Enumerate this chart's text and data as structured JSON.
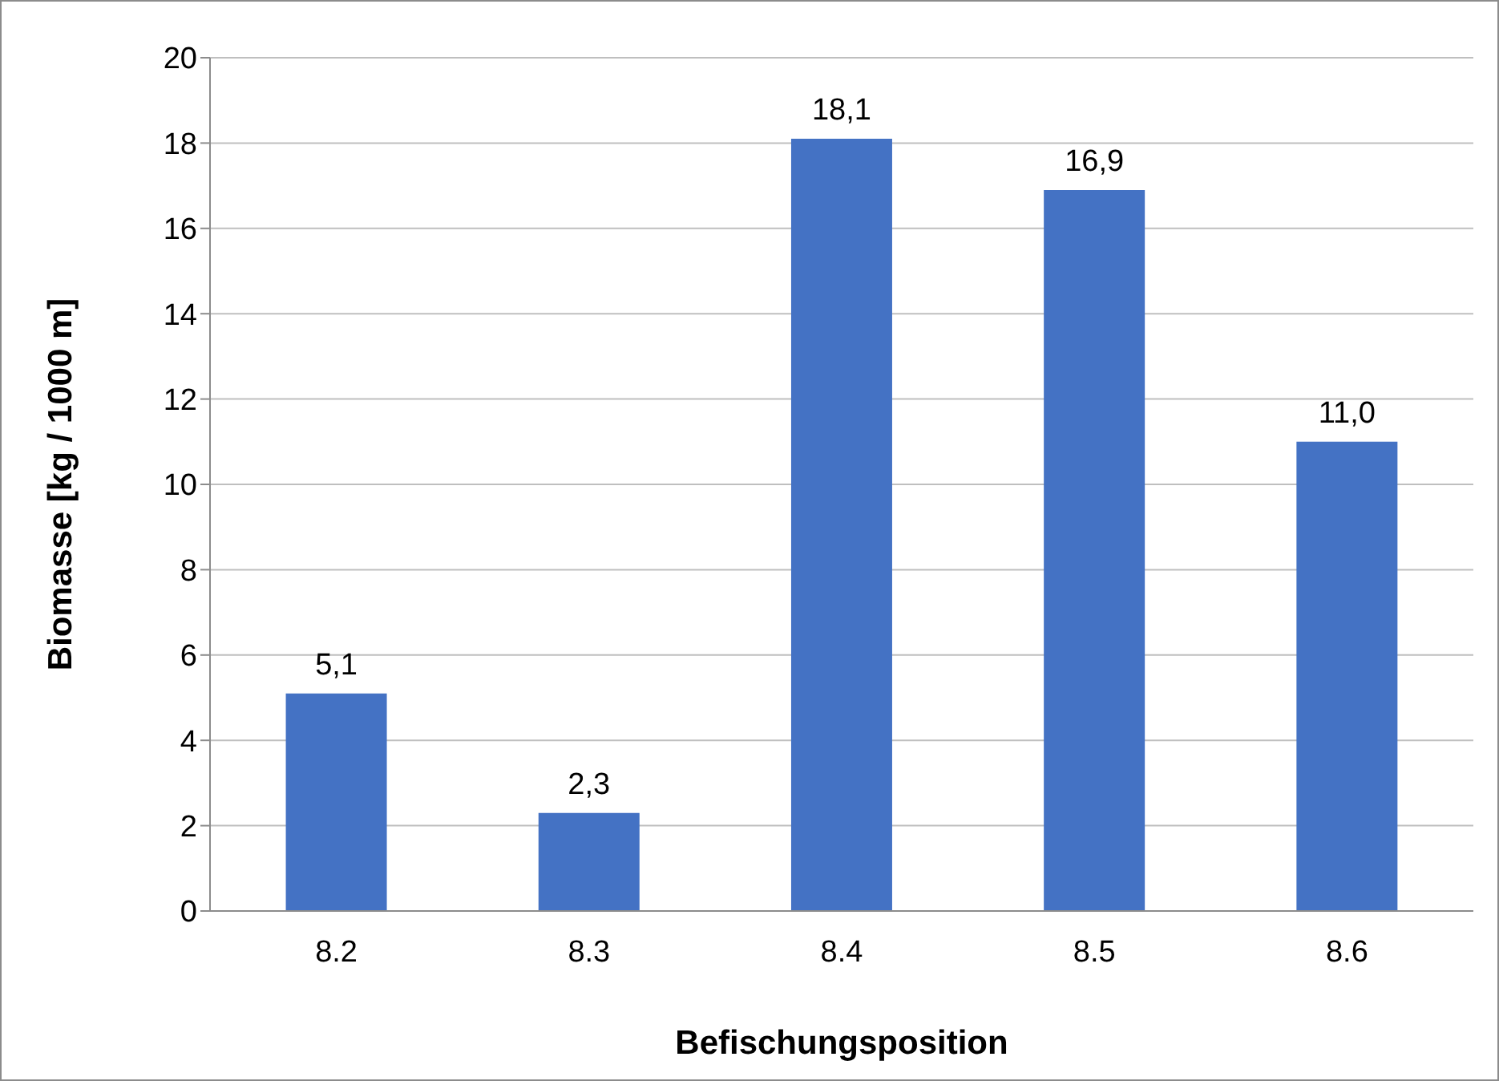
{
  "chart_data": {
    "type": "bar",
    "xlabel": "Befischungsposition",
    "ylabel": "Biomasse [kg / 1000 m]",
    "categories": [
      "8.2",
      "8.3",
      "8.4",
      "8.5",
      "8.6"
    ],
    "values": [
      5.1,
      2.3,
      18.1,
      16.9,
      11.0
    ],
    "value_labels": [
      "5,1",
      "2,3",
      "18,1",
      "16,9",
      "11,0"
    ],
    "color": "#4472c4",
    "ylim": [
      0,
      20
    ],
    "yticks": [
      0,
      2,
      4,
      6,
      8,
      10,
      12,
      14,
      16,
      18,
      20
    ],
    "grid": "y"
  }
}
